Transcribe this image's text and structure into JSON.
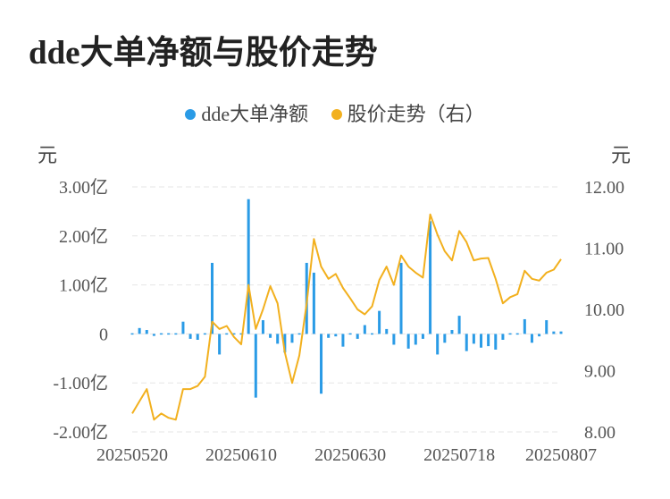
{
  "title": "dde大单净额与股价走势",
  "legend": {
    "bar_label": "dde大单净额",
    "line_label": "股价走势（右）"
  },
  "units": {
    "left": "元",
    "right": "元"
  },
  "colors": {
    "bar": "#2a9be6",
    "line": "#f2b01e",
    "grid": "#e6e6e6"
  },
  "chart_data": {
    "type": "bar+line",
    "x_ticks": [
      "20250520",
      "20250610",
      "20250630",
      "20250718",
      "20250807"
    ],
    "y_left": {
      "ticks": [
        "3.00亿",
        "2.00亿",
        "1.00亿",
        "0",
        "-1.00亿",
        "-2.00亿"
      ],
      "range": [
        -2.0,
        3.0
      ]
    },
    "y_right": {
      "ticks": [
        "12.00",
        "11.00",
        "10.00",
        "9.00",
        "8.00"
      ],
      "range": [
        8.0,
        12.0
      ]
    },
    "series": [
      {
        "name": "dde大单净额",
        "type": "bar",
        "values": [
          0.02,
          0.12,
          0.08,
          -0.04,
          -0.02,
          -0.02,
          -0.02,
          0.25,
          -0.1,
          -0.12,
          -0.02,
          1.45,
          -0.42,
          0.0,
          0.0,
          0.0,
          2.75,
          -1.3,
          0.28,
          -0.08,
          -0.2,
          -0.38,
          -0.18,
          0.0,
          1.45,
          1.25,
          -1.22,
          -0.08,
          -0.05,
          -0.26,
          0.0,
          -0.1,
          0.18,
          -0.02,
          0.47,
          0.1,
          -0.22,
          1.45,
          -0.3,
          -0.22,
          -0.1,
          2.3,
          -0.42,
          -0.18,
          0.08,
          0.37,
          -0.35,
          -0.2,
          -0.28,
          -0.25,
          -0.32,
          -0.12,
          0.0,
          0.0,
          0.3,
          -0.18,
          -0.05,
          0.28,
          0.05,
          0.05
        ]
      },
      {
        "name": "股价走势（右）",
        "type": "line",
        "values": [
          8.3,
          8.5,
          8.7,
          8.2,
          8.3,
          8.23,
          8.2,
          8.7,
          8.7,
          8.75,
          8.9,
          9.8,
          9.68,
          9.73,
          9.55,
          9.43,
          10.4,
          9.68,
          10.0,
          10.38,
          10.1,
          9.3,
          8.8,
          9.25,
          10.1,
          11.15,
          10.7,
          10.5,
          10.58,
          10.35,
          10.18,
          10.0,
          9.92,
          10.05,
          10.48,
          10.7,
          10.4,
          10.88,
          10.7,
          10.6,
          10.52,
          11.55,
          11.22,
          10.95,
          10.8,
          11.28,
          11.1,
          10.8,
          10.83,
          10.84,
          10.5,
          10.1,
          10.2,
          10.25,
          10.63,
          10.5,
          10.47,
          10.6,
          10.65,
          10.82
        ]
      }
    ],
    "grid": true,
    "legend_position": "top-center"
  }
}
